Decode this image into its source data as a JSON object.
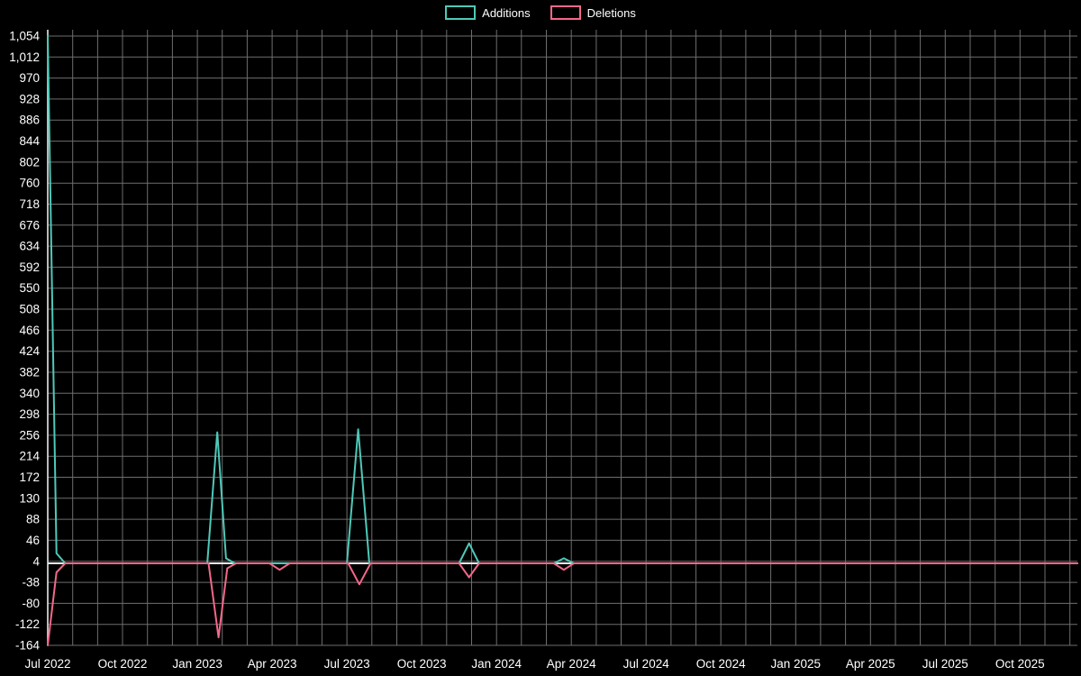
{
  "legend": {
    "items": [
      {
        "label": "Additions"
      },
      {
        "label": "Deletions"
      }
    ]
  },
  "colors": {
    "background": "#000000",
    "grid": "#6e6e6e",
    "axis": "#e8e8e8",
    "text": "#ffffff",
    "additions": "#4ec9b8",
    "deletions": "#f3688a"
  },
  "chart_data": {
    "type": "line",
    "title": "",
    "xlabel": "",
    "ylabel": "",
    "grid": true,
    "legend_position": "top-center",
    "ylim": [
      -164,
      1054
    ],
    "x_domain_months": [
      0,
      41.3
    ],
    "x_axis": {
      "start_label": "Jul 2022",
      "tick_interval_months": 3,
      "tick_labels": [
        "Jul 2022",
        "Oct 2022",
        "Jan 2023",
        "Apr 2023",
        "Jul 2023",
        "Oct 2023",
        "Jan 2024",
        "Apr 2024",
        "Jul 2024",
        "Oct 2024",
        "Jan 2025",
        "Apr 2025",
        "Jul 2025",
        "Oct 2025"
      ]
    },
    "y_axis": {
      "tick_step": 42,
      "tick_values": [
        -164,
        -122,
        -80,
        -38,
        4,
        46,
        88,
        130,
        172,
        214,
        256,
        298,
        340,
        382,
        424,
        466,
        508,
        550,
        592,
        634,
        676,
        718,
        760,
        802,
        844,
        886,
        928,
        970,
        1012,
        1054
      ],
      "tick_labels": [
        "-164",
        "-122",
        "-80",
        "-38",
        "4",
        "46",
        "88",
        "130",
        "172",
        "214",
        "256",
        "298",
        "340",
        "382",
        "424",
        "466",
        "508",
        "550",
        "592",
        "634",
        "676",
        "718",
        "760",
        "802",
        "844",
        "886",
        "928",
        "970",
        "1,012",
        "1,054"
      ]
    },
    "baseline_value": 0,
    "series": [
      {
        "name": "Additions",
        "color": "#4ec9b8",
        "points": [
          [
            0,
            1054
          ],
          [
            0.35,
            20
          ],
          [
            0.7,
            0
          ],
          [
            6.4,
            0
          ],
          [
            6.8,
            262
          ],
          [
            7.15,
            10
          ],
          [
            7.5,
            0
          ],
          [
            12.0,
            0
          ],
          [
            12.45,
            268
          ],
          [
            12.9,
            0
          ],
          [
            16.5,
            0
          ],
          [
            16.9,
            40
          ],
          [
            17.3,
            0
          ],
          [
            20.3,
            0
          ],
          [
            20.7,
            10
          ],
          [
            21.1,
            0
          ],
          [
            41.3,
            0
          ]
        ]
      },
      {
        "name": "Deletions",
        "color": "#f3688a",
        "points": [
          [
            0,
            -164
          ],
          [
            0.35,
            -18
          ],
          [
            0.7,
            0
          ],
          [
            6.45,
            0
          ],
          [
            6.85,
            -148
          ],
          [
            7.2,
            -10
          ],
          [
            7.55,
            0
          ],
          [
            8.9,
            0
          ],
          [
            9.3,
            -13
          ],
          [
            9.7,
            0
          ],
          [
            12.05,
            0
          ],
          [
            12.5,
            -42
          ],
          [
            12.95,
            0
          ],
          [
            16.5,
            0
          ],
          [
            16.9,
            -28
          ],
          [
            17.3,
            0
          ],
          [
            20.3,
            0
          ],
          [
            20.7,
            -13
          ],
          [
            21.1,
            0
          ],
          [
            41.3,
            0
          ]
        ]
      }
    ]
  }
}
